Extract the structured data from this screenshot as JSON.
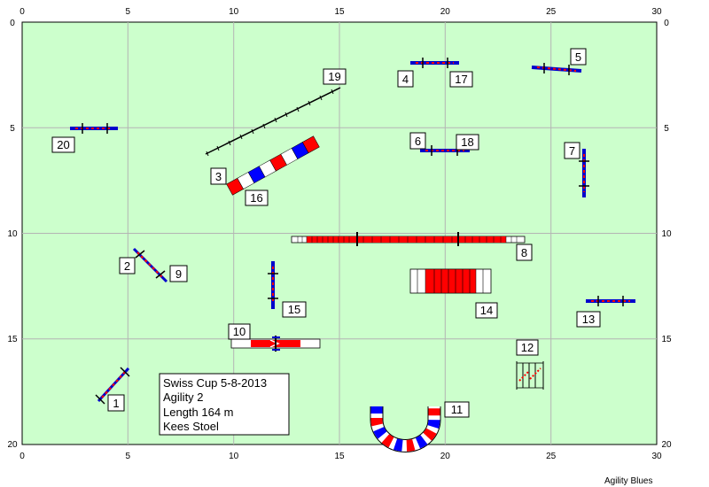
{
  "field": {
    "x_ticks": [
      "0",
      "5",
      "10",
      "15",
      "20",
      "25",
      "30"
    ],
    "y_ticks": [
      "0",
      "5",
      "10",
      "15",
      "20"
    ],
    "background_color": "#ccffcc",
    "grid_color": "#b0b0b0"
  },
  "info_box": {
    "line1": "Swiss Cup 5-8-2013",
    "line2": "Agility 2",
    "line3": "Length 164 m",
    "line4": "Kees Stoel"
  },
  "credit": "Agility Blues",
  "obstacle_labels": [
    "1",
    "2",
    "3",
    "4",
    "5",
    "6",
    "7",
    "8",
    "9",
    "10",
    "11",
    "12",
    "13",
    "14",
    "15",
    "16",
    "17",
    "18",
    "19",
    "20"
  ],
  "colors": {
    "jump_bar": "#0000cc",
    "contact_red": "#ff0000",
    "tunnel_blue": "#0000ff",
    "stroke": "#000000"
  }
}
